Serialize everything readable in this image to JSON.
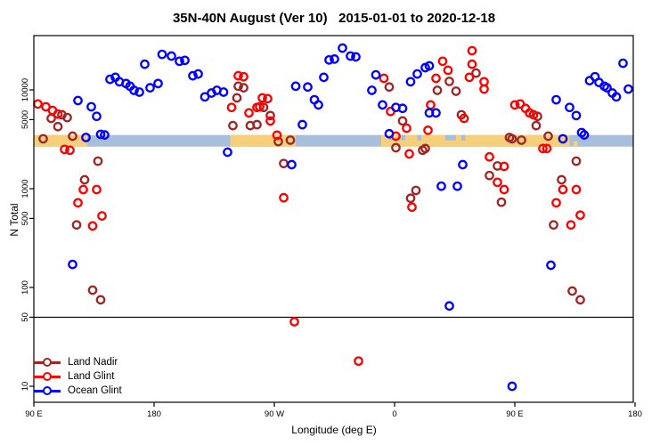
{
  "title": "35N-40N August (Ver 10)   2015-01-01 to 2020-12-18",
  "chart_data": {
    "type": "scatter",
    "title": "35N-40N August (Ver 10)   2015-01-01 to 2020-12-18",
    "xlabel": "Longitude (deg E)",
    "ylabel": "N Total",
    "x_axis": {
      "note": "longitude axis spans 450 deg starting at 90E heading east",
      "range_deg": [
        0,
        450
      ],
      "ticks": [
        {
          "deg": 0,
          "label": "90 E"
        },
        {
          "deg": 90,
          "label": "180"
        },
        {
          "deg": 180,
          "label": "90 W"
        },
        {
          "deg": 270,
          "label": "0"
        },
        {
          "deg": 360,
          "label": "90 E"
        },
        {
          "deg": 450,
          "label": "180"
        }
      ]
    },
    "y_axis": {
      "scale": "log",
      "range": [
        10,
        30000
      ],
      "ticks": [
        {
          "value": 10,
          "label": "10"
        },
        {
          "value": 50,
          "label": "50"
        },
        {
          "value": 100,
          "label": "100"
        },
        {
          "value": 500,
          "label": "500"
        },
        {
          "value": 1000,
          "label": "1000"
        },
        {
          "value": 5000,
          "label": "5000"
        },
        {
          "value": 10000,
          "label": "10000"
        }
      ]
    },
    "reference_line_value": 50,
    "band": {
      "center_value": 3050,
      "land_color": "#F5CF7A",
      "ocean_color": "#A9BEDA",
      "ocean_base_deg": [
        0,
        449
      ],
      "land_segments_deg": [
        [
          0,
          40
        ],
        [
          147,
          196
        ],
        [
          260,
          401
        ]
      ],
      "ocean_speckles_deg": [
        [
          266,
          269
        ],
        [
          275,
          278
        ],
        [
          287,
          290
        ],
        [
          308,
          316
        ],
        [
          320,
          323
        ]
      ],
      "land_speckles_deg": [
        [
          404,
          407
        ]
      ]
    },
    "legend_position": "bottom-left",
    "series": [
      {
        "name": "Land Nadir",
        "color": "#9B2726",
        "points": [
          [
            13,
            5150
          ],
          [
            21,
            5600
          ],
          [
            25,
            5250
          ],
          [
            18,
            4250
          ],
          [
            7,
            3200
          ],
          [
            29,
            3400
          ],
          [
            48,
            1900
          ],
          [
            38,
            1230
          ],
          [
            32,
            430
          ],
          [
            44,
            94
          ],
          [
            50,
            75
          ],
          [
            153,
            10900
          ],
          [
            157,
            10500
          ],
          [
            152,
            8300
          ],
          [
            172,
            6650
          ],
          [
            177,
            5500
          ],
          [
            149,
            4350
          ],
          [
            162,
            4350
          ],
          [
            167,
            4450
          ],
          [
            183,
            3000
          ],
          [
            192,
            3100
          ],
          [
            187,
            1800
          ],
          [
            266,
            10700
          ],
          [
            302,
            9900
          ],
          [
            311,
            12200
          ],
          [
            331,
            14800
          ],
          [
            316,
            9700
          ],
          [
            320,
            5600
          ],
          [
            276,
            4850
          ],
          [
            271,
            2600
          ],
          [
            293,
            2550
          ],
          [
            291,
            2450
          ],
          [
            286,
            960
          ],
          [
            282,
            800
          ],
          [
            377,
            5400
          ],
          [
            376,
            4350
          ],
          [
            356,
            3300
          ],
          [
            358,
            3200
          ],
          [
            365,
            3100
          ],
          [
            385,
            3400
          ],
          [
            341,
            1360
          ],
          [
            347,
            1700
          ],
          [
            350,
            730
          ],
          [
            395,
            1230
          ],
          [
            406,
            1900
          ],
          [
            389,
            430
          ],
          [
            403,
            92
          ],
          [
            409,
            75
          ]
        ]
      },
      {
        "name": "Land Glint",
        "color": "#FF0000",
        "points": [
          [
            3,
            7200
          ],
          [
            9,
            6750
          ],
          [
            14,
            6200
          ],
          [
            18,
            5700
          ],
          [
            23,
            2500
          ],
          [
            27,
            2450
          ],
          [
            37,
            980
          ],
          [
            47,
            980
          ],
          [
            33,
            720
          ],
          [
            51,
            530
          ],
          [
            44,
            420
          ],
          [
            153,
            13900
          ],
          [
            157,
            13600
          ],
          [
            171,
            8300
          ],
          [
            175,
            8150
          ],
          [
            148,
            6650
          ],
          [
            167,
            6650
          ],
          [
            169,
            6750
          ],
          [
            161,
            5850
          ],
          [
            177,
            4850
          ],
          [
            182,
            3480
          ],
          [
            187,
            810
          ],
          [
            195,
            45
          ],
          [
            243,
            18
          ],
          [
            262,
            13100
          ],
          [
            267,
            6050
          ],
          [
            271,
            3400
          ],
          [
            279,
            4100
          ],
          [
            281,
            2250
          ],
          [
            283,
            650
          ],
          [
            297,
            7050
          ],
          [
            301,
            13100
          ],
          [
            295,
            3900
          ],
          [
            306,
            19500
          ],
          [
            310,
            15800
          ],
          [
            326,
            13400
          ],
          [
            328,
            24900
          ],
          [
            328,
            18200
          ],
          [
            322,
            5150
          ],
          [
            337,
            12100
          ],
          [
            337,
            10200
          ],
          [
            341,
            2100
          ],
          [
            347,
            1160
          ],
          [
            352,
            1680
          ],
          [
            352,
            980
          ],
          [
            360,
            7050
          ],
          [
            364,
            7200
          ],
          [
            368,
            6500
          ],
          [
            371,
            5850
          ],
          [
            374,
            5600
          ],
          [
            381,
            2550
          ],
          [
            384,
            2550
          ],
          [
            391,
            720
          ],
          [
            396,
            980
          ],
          [
            402,
            430
          ],
          [
            406,
            980
          ],
          [
            409,
            540
          ]
        ]
      },
      {
        "name": "Ocean Glint",
        "color": "#0000FF",
        "points": [
          [
            33,
            7800
          ],
          [
            43,
            6750
          ],
          [
            47,
            5400
          ],
          [
            50,
            3550
          ],
          [
            53,
            3500
          ],
          [
            39,
            3300
          ],
          [
            29,
            171
          ],
          [
            57,
            12800
          ],
          [
            61,
            13400
          ],
          [
            64,
            12100
          ],
          [
            69,
            11600
          ],
          [
            72,
            10900
          ],
          [
            75,
            9900
          ],
          [
            79,
            9500
          ],
          [
            87,
            10500
          ],
          [
            93,
            11600
          ],
          [
            83,
            18200
          ],
          [
            96,
            22900
          ],
          [
            103,
            22000
          ],
          [
            109,
            19500
          ],
          [
            113,
            19900
          ],
          [
            119,
            13900
          ],
          [
            123,
            14500
          ],
          [
            128,
            8500
          ],
          [
            133,
            9300
          ],
          [
            137,
            9900
          ],
          [
            142,
            9500
          ],
          [
            145,
            2340
          ],
          [
            196,
            10900
          ],
          [
            205,
            10700
          ],
          [
            201,
            4450
          ],
          [
            193,
            1750
          ],
          [
            210,
            7950
          ],
          [
            213,
            7050
          ],
          [
            217,
            13400
          ],
          [
            221,
            20100
          ],
          [
            225,
            20500
          ],
          [
            231,
            26500
          ],
          [
            237,
            22000
          ],
          [
            241,
            21600
          ],
          [
            253,
            9900
          ],
          [
            256,
            14200
          ],
          [
            261,
            7050
          ],
          [
            266,
            3600
          ],
          [
            271,
            6650
          ],
          [
            276,
            6500
          ],
          [
            282,
            12100
          ],
          [
            287,
            14500
          ],
          [
            293,
            16800
          ],
          [
            296,
            17500
          ],
          [
            296,
            5850
          ],
          [
            301,
            5850
          ],
          [
            305,
            1060
          ],
          [
            317,
            1060
          ],
          [
            321,
            1750
          ],
          [
            311,
            65
          ],
          [
            358,
            10
          ],
          [
            387,
            168
          ],
          [
            391,
            7950
          ],
          [
            396,
            3200
          ],
          [
            401,
            6650
          ],
          [
            406,
            5500
          ],
          [
            410,
            3700
          ],
          [
            412,
            3500
          ],
          [
            416,
            12400
          ],
          [
            420,
            13600
          ],
          [
            423,
            11900
          ],
          [
            427,
            10900
          ],
          [
            429,
            10500
          ],
          [
            433,
            9300
          ],
          [
            436,
            8500
          ],
          [
            441,
            18600
          ],
          [
            445,
            10200
          ]
        ]
      }
    ]
  }
}
